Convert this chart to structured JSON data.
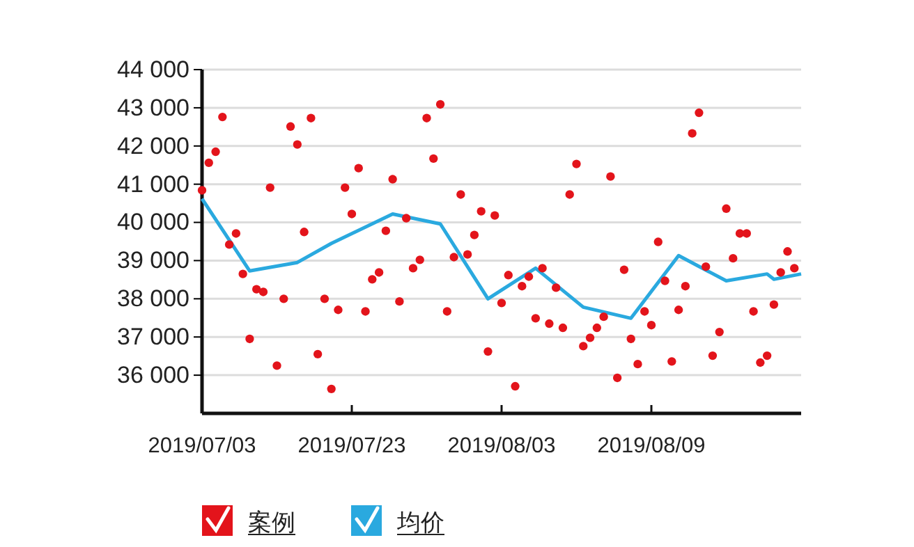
{
  "chart_data": {
    "type": "scatter",
    "categories": [
      "2019/07/03",
      null,
      null,
      null,
      null,
      null,
      null,
      null,
      null,
      null,
      null,
      null,
      null,
      null,
      null,
      null,
      null,
      null,
      null,
      null,
      null,
      null,
      "2019/07/23",
      null,
      null,
      null,
      null,
      null,
      null,
      null,
      null,
      null,
      null,
      null,
      null,
      null,
      null,
      null,
      null,
      null,
      null,
      null,
      null,
      null,
      "2019/08/03",
      null,
      null,
      null,
      null,
      null,
      null,
      null,
      null,
      null,
      null,
      null,
      null,
      null,
      null,
      null,
      null,
      null,
      null,
      null,
      null,
      null,
      "2019/08/09",
      null,
      null,
      null,
      null,
      null,
      null,
      null,
      null,
      null,
      null,
      null,
      null,
      null,
      null,
      null,
      null,
      null,
      null,
      null,
      null,
      null,
      null
    ],
    "ylim": [
      35000,
      44000
    ],
    "yticks": [
      {
        "value": 36000,
        "label": "36 000"
      },
      {
        "value": 37000,
        "label": "37 000"
      },
      {
        "value": 38000,
        "label": "38 000"
      },
      {
        "value": 39000,
        "label": "39 000"
      },
      {
        "value": 40000,
        "label": "40 000"
      },
      {
        "value": 41000,
        "label": "41 000"
      },
      {
        "value": 42000,
        "label": "42 000"
      },
      {
        "value": 43000,
        "label": "43 000"
      },
      {
        "value": 44000,
        "label": "44 000"
      }
    ],
    "grid": "y",
    "legend": "bottom",
    "marker": "circle",
    "series": [
      {
        "name": "案例",
        "color": "#e3141b",
        "values": [
          40840,
          41560,
          41850,
          42760,
          39420,
          39710,
          38650,
          36950,
          38250,
          38180,
          40910,
          36250,
          38000,
          42510,
          42040,
          39750,
          42730,
          36550,
          38000,
          35640,
          37710,
          40910,
          40220,
          41420,
          37670,
          38510,
          38690,
          39780,
          41130,
          37930,
          40110,
          38800,
          39020,
          42730,
          41670,
          43090,
          37670,
          39090,
          40730,
          39160,
          39670,
          40290,
          36620,
          40180,
          37890,
          38620,
          35710,
          38330,
          38580,
          37490,
          38800,
          37350,
          38290,
          37240,
          40730,
          41530,
          36760,
          36980,
          37240,
          37530,
          41200,
          35930,
          38760,
          36950,
          36290,
          37670,
          37310,
          39490,
          38470,
          36360,
          37710,
          38330,
          42330,
          42870,
          38840,
          36510,
          37130,
          40360,
          39060,
          39710,
          39710,
          37670,
          36330,
          36510,
          37850,
          38690,
          39240,
          38800,
          null
        ]
      },
      {
        "name": "均价",
        "type": "line",
        "color": "#2aa9df",
        "line_style": "solid",
        "marker": "none",
        "values": [
          40620,
          null,
          null,
          null,
          null,
          null,
          null,
          38730,
          null,
          null,
          null,
          null,
          null,
          null,
          38950,
          null,
          null,
          null,
          null,
          39450,
          null,
          null,
          null,
          null,
          null,
          null,
          null,
          null,
          40220,
          null,
          null,
          null,
          null,
          null,
          null,
          39960,
          null,
          null,
          null,
          null,
          null,
          null,
          38000,
          null,
          null,
          null,
          null,
          null,
          null,
          38800,
          null,
          null,
          null,
          null,
          null,
          null,
          37780,
          null,
          null,
          null,
          null,
          null,
          null,
          37490,
          null,
          null,
          null,
          null,
          null,
          null,
          39130,
          null,
          null,
          null,
          null,
          null,
          null,
          38470,
          null,
          null,
          null,
          null,
          null,
          38650,
          38510,
          null,
          null,
          null,
          38650
        ]
      }
    ]
  }
}
